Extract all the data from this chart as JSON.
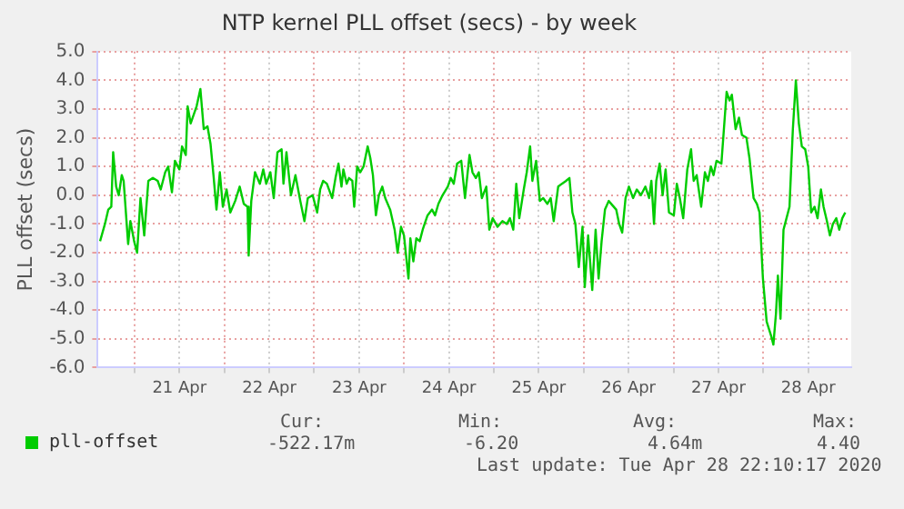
{
  "chart_data": {
    "type": "line",
    "title": "NTP kernel PLL offset (secs) - by week",
    "ylabel": "PLL offset (secs)",
    "x": [
      "2020-04-20T14:48",
      "2020-04-20T16:06",
      "2020-04-20T17:00",
      "2020-04-20T17:48",
      "2020-04-20T18:18",
      "2020-04-20T19:06",
      "2020-04-20T19:48",
      "2020-04-20T20:36",
      "2020-04-20T21:06",
      "2020-04-20T22:18",
      "2020-04-20T22:54",
      "2020-04-20T23:54",
      "2020-04-21T00:42",
      "2020-04-21T01:36",
      "2020-04-21T02:36",
      "2020-04-21T03:42",
      "2020-04-21T04:54",
      "2020-04-21T06:12",
      "2020-04-21T07:00",
      "2020-04-21T08:12",
      "2020-04-21T09:00",
      "2020-04-21T10:00",
      "2020-04-21T10:48",
      "2020-04-21T12:00",
      "2020-04-21T12:42",
      "2020-04-21T13:42",
      "2020-04-21T14:12",
      "2020-04-21T15:00",
      "2020-04-21T15:48",
      "2020-04-21T16:36",
      "2020-04-21T17:36",
      "2020-04-21T18:30",
      "2020-04-21T19:30",
      "2020-04-21T20:18",
      "2020-04-21T21:06",
      "2020-04-21T21:54",
      "2020-04-21T22:48",
      "2020-04-21T23:36",
      "2020-04-22T00:36",
      "2020-04-22T01:36",
      "2020-04-22T02:54",
      "2020-04-22T04:06",
      "2020-04-22T05:12",
      "2020-04-22T06:12",
      "2020-04-22T06:30",
      "2020-04-22T07:12",
      "2020-04-22T08:12",
      "2020-04-22T09:30",
      "2020-04-22T10:24",
      "2020-04-22T11:12",
      "2020-04-22T12:18",
      "2020-04-22T13:12",
      "2020-04-22T14:12",
      "2020-04-22T15:18",
      "2020-04-22T15:48",
      "2020-04-22T16:36",
      "2020-04-22T17:48",
      "2020-04-22T19:00",
      "2020-04-22T20:18",
      "2020-04-22T21:24",
      "2020-04-22T22:18",
      "2020-04-22T23:36",
      "2020-04-23T00:48",
      "2020-04-23T01:36",
      "2020-04-23T02:24",
      "2020-04-23T03:24",
      "2020-04-23T04:48",
      "2020-04-23T05:42",
      "2020-04-23T06:30",
      "2020-04-23T07:18",
      "2020-04-23T07:48",
      "2020-04-23T08:42",
      "2020-04-23T09:18",
      "2020-04-23T10:12",
      "2020-04-23T10:42",
      "2020-04-23T11:30",
      "2020-04-23T12:18",
      "2020-04-23T13:12",
      "2020-04-23T14:18",
      "2020-04-23T15:00",
      "2020-04-23T15:42",
      "2020-04-23T16:30",
      "2020-04-23T17:18",
      "2020-04-23T18:12",
      "2020-04-23T19:00",
      "2020-04-23T20:18",
      "2020-04-23T21:30",
      "2020-04-23T22:18",
      "2020-04-23T23:12",
      "2020-04-24T00:00",
      "2020-04-24T01:12",
      "2020-04-24T01:42",
      "2020-04-24T02:30",
      "2020-04-24T03:18",
      "2020-04-24T04:12",
      "2020-04-24T05:00",
      "2020-04-24T06:18",
      "2020-04-24T07:30",
      "2020-04-24T08:18",
      "2020-04-24T09:12",
      "2020-04-24T10:18",
      "2020-04-24T11:42",
      "2020-04-24T12:30",
      "2020-04-24T13:18",
      "2020-04-24T14:12",
      "2020-04-24T15:18",
      "2020-04-24T16:18",
      "2020-04-24T17:30",
      "2020-04-24T18:18",
      "2020-04-24T19:12",
      "2020-04-24T20:00",
      "2020-04-24T20:48",
      "2020-04-24T22:00",
      "2020-04-24T22:48",
      "2020-04-24T23:42",
      "2020-04-25T01:00",
      "2020-04-25T02:18",
      "2020-04-25T03:30",
      "2020-04-25T04:18",
      "2020-04-25T05:12",
      "2020-04-25T06:00",
      "2020-04-25T06:48",
      "2020-04-25T08:00",
      "2020-04-25T08:48",
      "2020-04-25T09:42",
      "2020-04-25T10:18",
      "2020-04-25T11:18",
      "2020-04-25T12:18",
      "2020-04-25T13:12",
      "2020-04-25T14:18",
      "2020-04-25T15:12",
      "2020-04-25T16:00",
      "2020-04-25T17:12",
      "2020-04-25T18:12",
      "2020-04-25T19:18",
      "2020-04-25T20:12",
      "2020-04-25T21:00",
      "2020-04-25T21:48",
      "2020-04-25T22:42",
      "2020-04-25T23:42",
      "2020-04-26T00:18",
      "2020-04-26T01:12",
      "2020-04-26T02:18",
      "2020-04-26T03:12",
      "2020-04-26T04:00",
      "2020-04-26T04:48",
      "2020-04-26T05:42",
      "2020-04-26T06:42",
      "2020-04-26T08:42",
      "2020-04-26T09:30",
      "2020-04-26T10:18",
      "2020-04-26T11:12",
      "2020-04-26T12:06",
      "2020-04-26T13:12",
      "2020-04-26T14:12",
      "2020-04-26T15:18",
      "2020-04-26T16:30",
      "2020-04-26T17:30",
      "2020-04-26T18:06",
      "2020-04-26T18:48",
      "2020-04-26T19:24",
      "2020-04-26T20:18",
      "2020-04-26T21:06",
      "2020-04-26T21:54",
      "2020-04-26T22:48",
      "2020-04-27T00:06",
      "2020-04-27T00:54",
      "2020-04-27T01:42",
      "2020-04-27T02:36",
      "2020-04-27T03:42",
      "2020-04-27T04:42",
      "2020-04-27T05:24",
      "2020-04-27T06:12",
      "2020-04-27T07:24",
      "2020-04-27T08:24",
      "2020-04-27T09:12",
      "2020-04-27T10:00",
      "2020-04-27T10:42",
      "2020-04-27T11:30",
      "2020-04-27T12:48",
      "2020-04-27T14:12",
      "2020-04-27T15:00",
      "2020-04-27T15:36",
      "2020-04-27T16:36",
      "2020-04-27T17:30",
      "2020-04-27T18:18",
      "2020-04-27T19:30",
      "2020-04-27T20:18",
      "2020-04-27T21:24",
      "2020-04-27T22:18",
      "2020-04-27T23:00",
      "2020-04-27T23:54",
      "2020-04-28T00:54",
      "2020-04-28T02:06",
      "2020-04-28T02:42",
      "2020-04-28T03:24",
      "2020-04-28T03:54",
      "2020-04-28T04:36",
      "2020-04-28T05:24",
      "2020-04-28T06:12",
      "2020-04-28T07:00",
      "2020-04-28T07:54",
      "2020-04-28T08:42",
      "2020-04-28T09:30",
      "2020-04-28T10:18",
      "2020-04-28T11:12",
      "2020-04-28T12:00",
      "2020-04-28T12:48",
      "2020-04-28T13:42",
      "2020-04-28T14:30",
      "2020-04-28T15:24",
      "2020-04-28T16:06",
      "2020-04-28T17:00",
      "2020-04-28T17:48",
      "2020-04-28T18:36",
      "2020-04-28T19:30",
      "2020-04-28T20:18",
      "2020-04-28T21:06",
      "2020-04-28T21:54"
    ],
    "series": [
      {
        "name": "pll-offset",
        "color": "#00cc00",
        "values": [
          -1.6,
          -1.0,
          -0.5,
          -0.4,
          1.5,
          0.3,
          0.0,
          0.7,
          0.5,
          -1.7,
          -0.9,
          -1.6,
          -2.0,
          -0.1,
          -1.4,
          0.5,
          0.6,
          0.5,
          0.2,
          0.8,
          1.0,
          0.1,
          1.2,
          0.9,
          1.7,
          1.4,
          3.1,
          2.5,
          2.8,
          3.1,
          3.7,
          2.3,
          2.4,
          1.8,
          0.7,
          -0.5,
          0.8,
          -0.4,
          0.2,
          -0.6,
          -0.2,
          0.3,
          -0.3,
          -0.4,
          -2.1,
          -0.2,
          0.8,
          0.4,
          0.9,
          0.4,
          0.8,
          -0.1,
          1.5,
          1.6,
          0.4,
          1.5,
          0.0,
          0.7,
          -0.2,
          -0.9,
          -0.1,
          0.0,
          -0.6,
          0.2,
          0.5,
          0.4,
          -0.1,
          0.6,
          1.1,
          0.3,
          0.9,
          0.4,
          0.6,
          0.5,
          -0.4,
          1.0,
          0.8,
          1.0,
          1.7,
          1.3,
          0.7,
          -0.7,
          0.0,
          0.3,
          -0.1,
          -0.5,
          -1.2,
          -2.0,
          -1.1,
          -1.4,
          -2.9,
          -1.5,
          -2.3,
          -1.5,
          -1.6,
          -1.2,
          -0.7,
          -0.5,
          -0.7,
          -0.3,
          0.0,
          0.3,
          0.6,
          0.4,
          1.1,
          1.2,
          -0.1,
          1.4,
          0.8,
          0.6,
          0.8,
          -0.1,
          0.3,
          -1.2,
          -0.8,
          -1.1,
          -0.9,
          -1.0,
          -0.8,
          -1.2,
          0.4,
          -0.8,
          0.2,
          0.8,
          1.7,
          0.5,
          1.2,
          -0.2,
          -0.1,
          -0.3,
          -0.1,
          -0.9,
          0.3,
          0.4,
          0.5,
          0.6,
          -0.6,
          -1.0,
          -2.5,
          -1.1,
          -3.2,
          -1.4,
          -3.3,
          -1.2,
          -2.9,
          -1.6,
          -0.5,
          -0.2,
          -0.5,
          -1.0,
          -1.3,
          -0.1,
          0.3,
          -0.1,
          0.2,
          0.0,
          0.3,
          -0.1,
          0.5,
          -1.0,
          0.5,
          1.1,
          0.0,
          0.9,
          -0.6,
          -0.7,
          0.4,
          -0.1,
          -0.8,
          0.9,
          1.6,
          0.5,
          0.7,
          -0.4,
          0.8,
          0.5,
          1.0,
          0.7,
          1.2,
          1.1,
          3.6,
          3.3,
          3.5,
          2.3,
          2.7,
          2.1,
          2.0,
          1.3,
          -0.1,
          -0.3,
          -0.6,
          -2.9,
          -4.4,
          -4.9,
          -5.2,
          -4.1,
          -2.8,
          -4.3,
          -1.2,
          -0.8,
          -0.4,
          2.3,
          4.0,
          2.5,
          1.7,
          1.6,
          1.0,
          -0.6,
          -0.4,
          -0.8,
          0.2,
          -0.4,
          -0.9,
          -1.4,
          -1.0,
          -0.8,
          -1.2,
          -0.8,
          -0.6
        ]
      }
    ],
    "xlim": [
      "2020-04-20T14:10",
      "2020-04-28T23:30"
    ],
    "xticks": [
      {
        "value": "2020-04-21T00:00",
        "label": null
      },
      {
        "value": "2020-04-21T12:00",
        "label": "21 Apr"
      },
      {
        "value": "2020-04-22T00:00",
        "label": null
      },
      {
        "value": "2020-04-22T12:00",
        "label": "22 Apr"
      },
      {
        "value": "2020-04-23T00:00",
        "label": null
      },
      {
        "value": "2020-04-23T12:00",
        "label": "23 Apr"
      },
      {
        "value": "2020-04-24T00:00",
        "label": null
      },
      {
        "value": "2020-04-24T12:00",
        "label": "24 Apr"
      },
      {
        "value": "2020-04-25T00:00",
        "label": null
      },
      {
        "value": "2020-04-25T12:00",
        "label": "25 Apr"
      },
      {
        "value": "2020-04-26T00:00",
        "label": null
      },
      {
        "value": "2020-04-26T12:00",
        "label": "26 Apr"
      },
      {
        "value": "2020-04-27T00:00",
        "label": null
      },
      {
        "value": "2020-04-27T12:00",
        "label": "27 Apr"
      },
      {
        "value": "2020-04-28T00:00",
        "label": null
      },
      {
        "value": "2020-04-28T12:00",
        "label": "28 Apr"
      }
    ],
    "ylim": [
      -6,
      5
    ],
    "yticks": [
      {
        "value": 5,
        "label": "5.0"
      },
      {
        "value": 4,
        "label": "4.0"
      },
      {
        "value": 3,
        "label": "3.0"
      },
      {
        "value": 2,
        "label": "2.0"
      },
      {
        "value": 1,
        "label": "1.0"
      },
      {
        "value": 0,
        "label": "0.0"
      },
      {
        "value": -1,
        "label": "-1.0"
      },
      {
        "value": -2,
        "label": "-2.0"
      },
      {
        "value": -3,
        "label": "-3.0"
      },
      {
        "value": -4,
        "label": "-4.0"
      },
      {
        "value": -5,
        "label": "-5.0"
      },
      {
        "value": -6,
        "label": "-6.0"
      }
    ],
    "grid": true,
    "legend": "bottom",
    "annotations": [
      "Cur:",
      "-522.17m",
      "Min:",
      "-6.20",
      "Avg:",
      "4.64m",
      "Max:",
      "4.40",
      "Last update: Tue Apr 28 22:10:17 2020"
    ]
  }
}
